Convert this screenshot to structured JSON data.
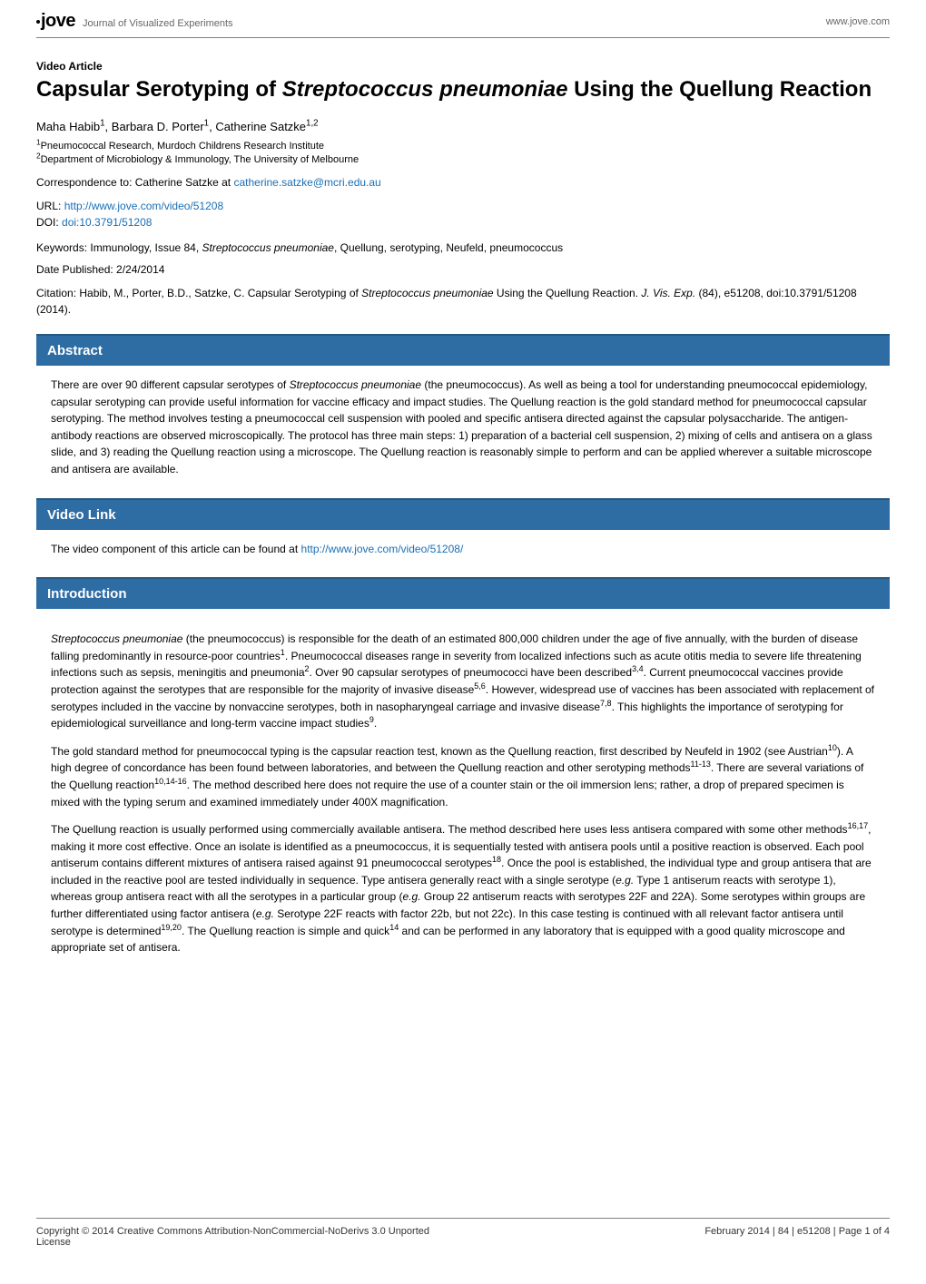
{
  "colors": {
    "section_header_bg": "#2e6ca4",
    "section_header_border": "#24587f",
    "link": "#1a6fb5",
    "text": "#000000",
    "muted": "#666666",
    "rule": "#808080",
    "background": "#ffffff"
  },
  "typography": {
    "body_font": "Arial, Helvetica, sans-serif",
    "title_fontsize_pt": 18,
    "section_header_fontsize_pt": 11,
    "body_fontsize_pt": 9
  },
  "header": {
    "logo_text": "jove",
    "logo_sub": "Journal of Visualized Experiments",
    "site_url": "www.jove.com"
  },
  "article": {
    "type": "Video Article",
    "title_pre": "Capsular Serotyping of ",
    "title_species": "Streptococcus pneumoniae",
    "title_post": " Using the Quellung Reaction",
    "authors_line": "Maha Habib",
    "author1_sup": "1",
    "author2": ", Barbara D. Porter",
    "author2_sup": "1",
    "author3": ", Catherine Satzke",
    "author3_sup": "1,2",
    "affil1_sup": "1",
    "affil1": "Pneumococcal Research, Murdoch Childrens Research Institute",
    "affil2_sup": "2",
    "affil2": "Department of Microbiology & Immunology, The University of Melbourne",
    "corr_label": "Correspondence to: Catherine Satzke at ",
    "corr_email": "catherine.satzke@mcri.edu.au",
    "url_label": "URL: ",
    "url_value": "http://www.jove.com/video/51208",
    "doi_label": "DOI: ",
    "doi_value": "doi:10.3791/51208",
    "keywords_label": "Keywords: Immunology, Issue 84, ",
    "keywords_species": "Streptococcus pneumoniae",
    "keywords_rest": ", Quellung, serotyping, Neufeld, pneumococcus",
    "date_pub_label": "Date Published: 2/24/2014",
    "citation_pre": "Citation: Habib, M., Porter, B.D., Satzke, C. Capsular Serotyping of ",
    "citation_species": "Streptococcus pneumoniae",
    "citation_mid": " Using the Quellung Reaction. ",
    "citation_journal": "J. Vis. Exp.",
    "citation_post": " (84), e51208, doi:10.3791/51208 (2014)."
  },
  "sections": {
    "abstract": {
      "title": "Abstract",
      "p1a": "There are over 90 different capsular serotypes of ",
      "p1_species": "Streptococcus pneumoniae",
      "p1b": " (the pneumococcus). As well as being a tool for understanding pneumococcal epidemiology, capsular serotyping can provide useful information for vaccine efficacy and impact studies. The Quellung reaction is the gold standard method for pneumococcal capsular serotyping. The method involves testing a pneumococcal cell suspension with pooled and specific antisera directed against the capsular polysaccharide. The antigen-antibody reactions are observed microscopically. The protocol has three main steps: 1) preparation of a bacterial cell suspension, 2) mixing of cells and antisera on a glass slide, and 3) reading the Quellung reaction using a microscope. The Quellung reaction is reasonably simple to perform and can be applied wherever a suitable microscope and antisera are available."
    },
    "video": {
      "title": "Video Link",
      "text": "The video component of this article can be found at ",
      "url": "http://www.jove.com/video/51208/"
    },
    "intro": {
      "title": "Introduction",
      "p1_species": "Streptococcus pneumoniae",
      "p1a": " (the pneumococcus) is responsible for the death of an estimated 800,000 children under the age of five annually, with the burden of disease falling predominantly in resource-poor countries",
      "p1s1": "1",
      "p1b": ". Pneumococcal diseases range in severity from localized infections such as acute otitis media to severe life threatening infections such as sepsis, meningitis and pneumonia",
      "p1s2": "2",
      "p1c": ". Over 90 capsular serotypes of pneumococci have been described",
      "p1s3": "3,4",
      "p1d": ". Current pneumococcal vaccines provide protection against the serotypes that are responsible for the majority of invasive disease",
      "p1s4": "5,6",
      "p1e": ". However, widespread use of vaccines has been associated with replacement of serotypes included in the vaccine by nonvaccine serotypes, both in nasopharyngeal carriage and invasive disease",
      "p1s5": "7,8",
      "p1f": ". This highlights the importance of serotyping for epidemiological surveillance and long-term vaccine impact studies",
      "p1s6": "9",
      "p1g": ".",
      "p2a": "The gold standard method for pneumococcal typing is the capsular reaction test, known as the Quellung reaction, first described by Neufeld in 1902 (see Austrian",
      "p2s1": "10",
      "p2b": "). A high degree of concordance has been found between laboratories, and between the Quellung reaction and other serotyping methods",
      "p2s2": "11-13",
      "p2c": ". There are several variations of the Quellung reaction",
      "p2s3": "10,14-16",
      "p2d": ".  The method described here does not require the use of a counter stain or the oil immersion lens; rather, a drop of prepared specimen is mixed with the typing serum and examined immediately under 400X magnification.",
      "p3a": "The Quellung reaction is usually performed using commercially available antisera. The method described here uses less antisera compared with some other methods",
      "p3s1": "16,17",
      "p3b": ", making it more cost effective. Once an isolate is identified as a pneumococcus, it is sequentially tested with antisera pools until a positive reaction is observed. Each pool antiserum contains different mixtures of antisera raised against 91 pneumococcal serotypes",
      "p3s2": "18",
      "p3c": ". Once the pool is established, the individual type and group antisera that are included in the reactive pool are tested individually in sequence. Type antisera generally react with a single serotype (",
      "p3_eg1": "e.g.",
      "p3d": " Type 1 antiserum reacts with serotype 1), whereas group antisera react with all the serotypes in a particular group (",
      "p3_eg2": "e.g.",
      "p3e": " Group 22 antiserum reacts with serotypes 22F and 22A). Some serotypes within groups are further differentiated using factor antisera (",
      "p3_eg3": "e.g.",
      "p3f": " Serotype 22F reacts with factor 22b, but not 22c). In this case testing is continued with all relevant factor antisera until serotype is determined",
      "p3s3": "19,20",
      "p3g": ". The Quellung reaction is simple and quick",
      "p3s4": "14",
      "p3h": " and can be performed in any laboratory that is equipped with a good quality microscope and appropriate set of antisera."
    }
  },
  "footer": {
    "left1": "Copyright © 2014  Creative Commons Attribution-NonCommercial-NoDerivs 3.0 Unported",
    "left2": "License",
    "right": "February 2014 |  84  | e51208 | Page 1 of 4"
  }
}
